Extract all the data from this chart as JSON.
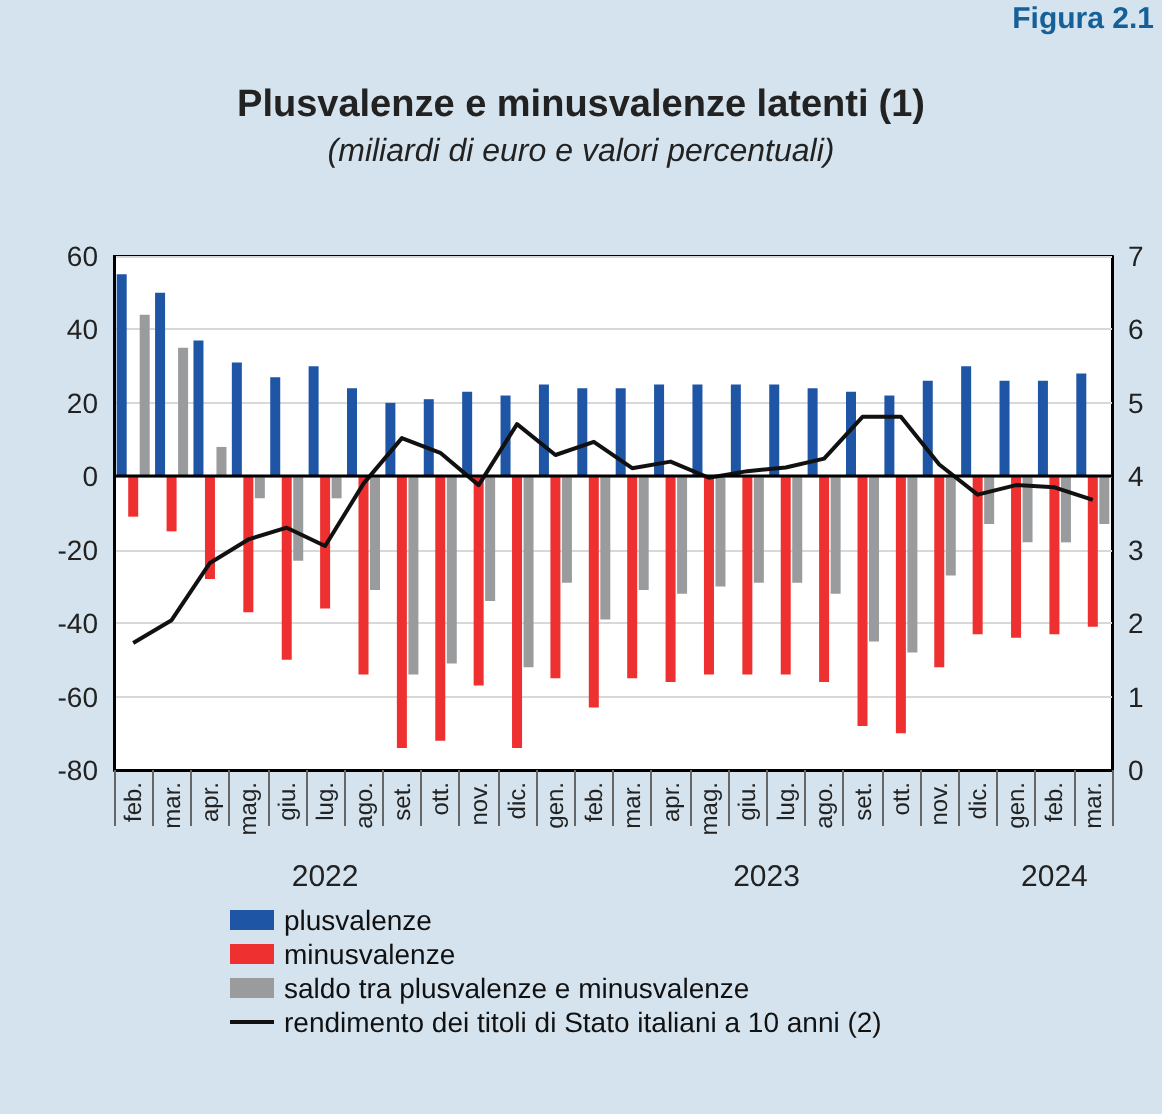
{
  "chart_data": {
    "type": "bar",
    "title": "Plusvalenze e minusvalenze latenti (1)",
    "subtitle": "(miliardi di euro e valori percentuali)",
    "annotations": [
      "Figura 2.1",
      "2022",
      "2023",
      "2024"
    ],
    "categories": [
      "feb.",
      "mar.",
      "apr.",
      "mag.",
      "giu.",
      "lug.",
      "ago.",
      "set.",
      "ott.",
      "nov.",
      "dic.",
      "gen.",
      "feb.",
      "mar.",
      "apr.",
      "mag.",
      "giu.",
      "lug.",
      "ago.",
      "set.",
      "ott.",
      "nov.",
      "dic.",
      "gen.",
      "feb.",
      "mar."
    ],
    "series": [
      {
        "name": "plusvalenze",
        "color": "#1f55a5",
        "values": [
          55,
          50,
          37,
          31,
          27,
          30,
          24,
          20,
          21,
          23,
          22,
          25,
          24,
          24,
          25,
          25,
          25,
          25,
          24,
          23,
          22,
          26,
          30,
          26,
          26,
          28
        ]
      },
      {
        "name": "minusvalenze",
        "color": "#ee3030",
        "values": [
          -11,
          -15,
          -28,
          -37,
          -50,
          -36,
          -54,
          -74,
          -72,
          -57,
          -74,
          -55,
          -63,
          -55,
          -56,
          -54,
          -54,
          -54,
          -56,
          -68,
          -70,
          -52,
          -43,
          -44,
          -43,
          -41
        ]
      },
      {
        "name": "saldo tra plusvalenze e minusvalenze",
        "color": "#9a9b9d",
        "values": [
          44,
          35,
          8,
          -6,
          -23,
          -6,
          -31,
          -54,
          -51,
          -34,
          -52,
          -29,
          -39,
          -31,
          -32,
          -30,
          -29,
          -29,
          -32,
          -45,
          -48,
          -27,
          -13,
          -18,
          -18,
          -13
        ]
      },
      {
        "name": "rendimento dei titoli di Stato italiani a 10 anni (2)",
        "type": "line",
        "axis": "y2",
        "color": "#111111",
        "values": [
          1.73,
          2.04,
          2.82,
          3.14,
          3.3,
          3.05,
          3.9,
          4.52,
          4.32,
          3.88,
          4.71,
          4.29,
          4.47,
          4.11,
          4.2,
          3.98,
          4.07,
          4.12,
          4.24,
          4.81,
          4.81,
          4.16,
          3.75,
          3.88,
          3.85,
          3.68
        ]
      }
    ],
    "ylim": [
      -80,
      60
    ],
    "yticks": [
      -80,
      -60,
      -40,
      -20,
      0,
      20,
      40,
      60
    ],
    "y2lim": [
      0,
      7
    ],
    "y2ticks": [
      0,
      1,
      2,
      3,
      4,
      5,
      6,
      7
    ],
    "grid": "y",
    "legend": "bottom",
    "marker": "none",
    "line_style": "solid"
  }
}
